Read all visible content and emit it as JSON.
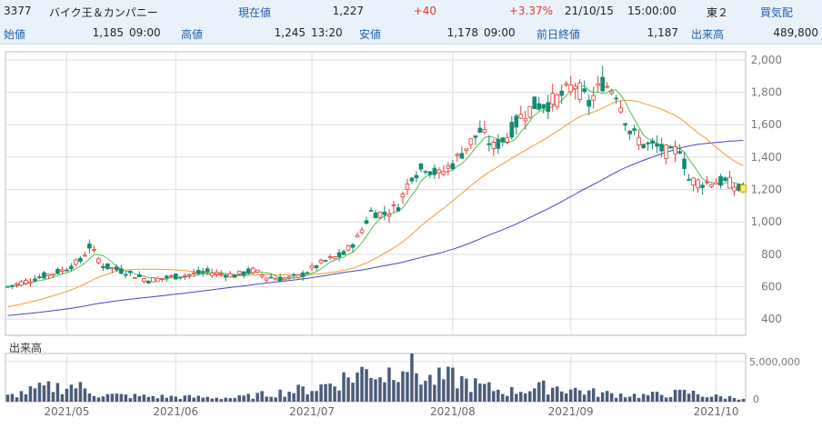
{
  "header": {
    "code": "3377",
    "name": "バイク王＆カンパニー",
    "current_label": "現在値",
    "current_value": "1,227",
    "change": "+40",
    "change_pct": "+3.37%",
    "date": "21/10/15",
    "time": "15:00:00",
    "market": "東２",
    "quote_label": "買気配",
    "open_label": "始値",
    "open_value": "1,185",
    "open_time": "09:00",
    "high_label": "高値",
    "high_value": "1,245",
    "high_time": "13:20",
    "low_label": "安値",
    "low_value": "1,178",
    "low_time": "09:00",
    "prev_label": "前日終値",
    "prev_value": "1,187",
    "volume_label": "出来高",
    "volume_value": "489,800"
  },
  "colors": {
    "up": "#e23b3b",
    "down": "#148a72",
    "ma_short": "#4cc24c",
    "ma_mid": "#f39a2e",
    "ma_long": "#4444cc",
    "volume_bar": "#4a5c7a",
    "grid": "#dddddd"
  },
  "chart_data": {
    "type": "candlestick",
    "x_tick_labels": [
      "2021/05",
      "2021/06",
      "2021/07",
      "2021/08",
      "2021/09",
      "2021/10"
    ],
    "y_tick_labels": [
      "400",
      "600",
      "800",
      "1,000",
      "1,200",
      "1,400",
      "1,600",
      "1,800",
      "2,000"
    ],
    "ylim": [
      300,
      2050
    ],
    "volume_label": "出来高",
    "volume_tick_labels": [
      "5,000,000",
      "0"
    ],
    "volume_ylim": [
      0,
      6000000
    ],
    "price_anchors": [
      [
        0,
        600
      ],
      [
        6,
        650
      ],
      [
        12,
        700
      ],
      [
        16,
        760
      ],
      [
        18,
        850
      ],
      [
        21,
        730
      ],
      [
        26,
        690
      ],
      [
        31,
        640
      ],
      [
        36,
        660
      ],
      [
        44,
        690
      ],
      [
        50,
        670
      ],
      [
        54,
        700
      ],
      [
        57,
        660
      ],
      [
        60,
        650
      ],
      [
        64,
        660
      ],
      [
        70,
        760
      ],
      [
        74,
        800
      ],
      [
        77,
        900
      ],
      [
        80,
        1060
      ],
      [
        83,
        1050
      ],
      [
        86,
        1100
      ],
      [
        89,
        1290
      ],
      [
        92,
        1340
      ],
      [
        95,
        1290
      ],
      [
        98,
        1360
      ],
      [
        101,
        1460
      ],
      [
        104,
        1560
      ],
      [
        107,
        1460
      ],
      [
        110,
        1530
      ],
      [
        113,
        1650
      ],
      [
        116,
        1720
      ],
      [
        119,
        1730
      ],
      [
        122,
        1780
      ],
      [
        125,
        1850
      ],
      [
        128,
        1730
      ],
      [
        131,
        1860
      ],
      [
        134,
        1800
      ],
      [
        137,
        1560
      ],
      [
        140,
        1480
      ],
      [
        143,
        1460
      ],
      [
        146,
        1420
      ],
      [
        148,
        1460
      ],
      [
        150,
        1260
      ],
      [
        153,
        1240
      ],
      [
        156,
        1250
      ],
      [
        159,
        1240
      ],
      [
        161,
        1200
      ],
      [
        162,
        1227
      ]
    ],
    "volume_anchors": [
      [
        0,
        700000
      ],
      [
        8,
        1800000
      ],
      [
        15,
        2100000
      ],
      [
        20,
        900000
      ],
      [
        30,
        700000
      ],
      [
        50,
        500000
      ],
      [
        60,
        1200000
      ],
      [
        68,
        1800000
      ],
      [
        75,
        3200000
      ],
      [
        80,
        4300000
      ],
      [
        83,
        3400000
      ],
      [
        87,
        5700000
      ],
      [
        92,
        2800000
      ],
      [
        98,
        3100000
      ],
      [
        104,
        2000000
      ],
      [
        110,
        1300000
      ],
      [
        120,
        2000000
      ],
      [
        130,
        1100000
      ],
      [
        140,
        800000
      ],
      [
        150,
        1200000
      ],
      [
        155,
        700000
      ],
      [
        162,
        500000
      ]
    ],
    "ma25_start": 470,
    "ma75_start": 420
  }
}
